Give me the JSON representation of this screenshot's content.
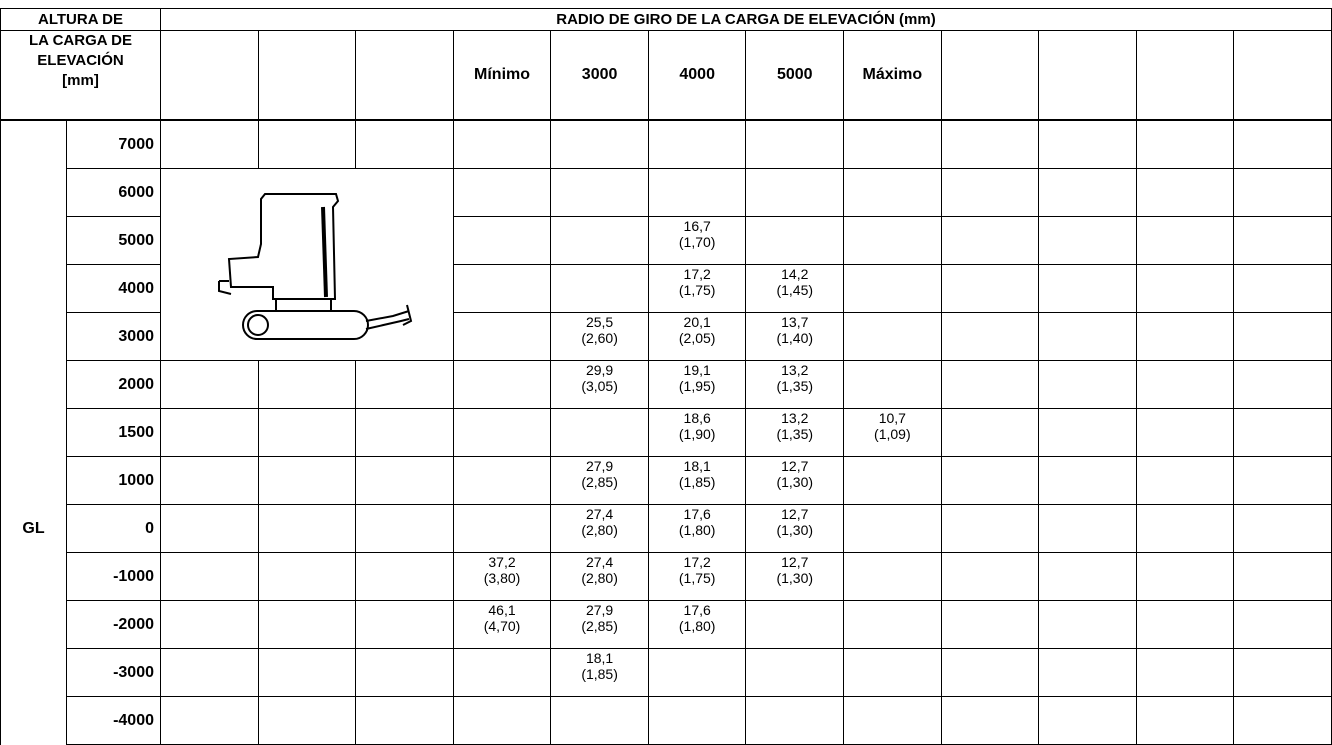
{
  "header": {
    "left_top": "ALTURA DE",
    "left_bottom": [
      "LA CARGA DE",
      "ELEVACIÓN",
      "[mm]"
    ],
    "title": "RADIO DE GIRO DE LA CARGA DE ELEVACIÓN (mm)",
    "columns": [
      null,
      null,
      null,
      "Mínimo",
      "3000",
      "4000",
      "5000",
      "Máximo",
      null,
      null,
      null,
      null
    ]
  },
  "rows": [
    {
      "height": "7000",
      "cells": [
        null,
        null,
        null,
        null,
        null,
        null,
        null,
        null,
        null,
        null,
        null,
        null
      ]
    },
    {
      "height": "6000",
      "cells": [
        null,
        null,
        null,
        null,
        null,
        null,
        null,
        null,
        null,
        null,
        null,
        null
      ]
    },
    {
      "height": "5000",
      "cells": [
        null,
        null,
        null,
        null,
        null,
        {
          "value": "16,7",
          "sub": "(1,70)"
        },
        null,
        null,
        null,
        null,
        null,
        null
      ]
    },
    {
      "height": "4000",
      "cells": [
        null,
        null,
        null,
        null,
        null,
        {
          "value": "17,2",
          "sub": "(1,75)"
        },
        {
          "value": "14,2",
          "sub": "(1,45)"
        },
        null,
        null,
        null,
        null,
        null
      ]
    },
    {
      "height": "3000",
      "cells": [
        null,
        null,
        null,
        null,
        {
          "value": "25,5",
          "sub": "(2,60)"
        },
        {
          "value": "20,1",
          "sub": "(2,05)"
        },
        {
          "value": "13,7",
          "sub": "(1,40)"
        },
        null,
        null,
        null,
        null,
        null
      ]
    },
    {
      "height": "2000",
      "cells": [
        null,
        null,
        null,
        null,
        {
          "value": "29,9",
          "sub": "(3,05)"
        },
        {
          "value": "19,1",
          "sub": "(1,95)"
        },
        {
          "value": "13,2",
          "sub": "(1,35)"
        },
        null,
        null,
        null,
        null,
        null
      ]
    },
    {
      "height": "1500",
      "cells": [
        null,
        null,
        null,
        null,
        null,
        {
          "value": "18,6",
          "sub": "(1,90)"
        },
        {
          "value": "13,2",
          "sub": "(1,35)"
        },
        {
          "value": "10,7",
          "sub": "(1,09)"
        },
        null,
        null,
        null,
        null
      ]
    },
    {
      "height": "1000",
      "cells": [
        null,
        null,
        null,
        null,
        {
          "value": "27,9",
          "sub": "(2,85)"
        },
        {
          "value": "18,1",
          "sub": "(1,85)"
        },
        {
          "value": "12,7",
          "sub": "(1,30)"
        },
        null,
        null,
        null,
        null,
        null
      ]
    },
    {
      "height": "0",
      "side": "GL",
      "cells": [
        null,
        null,
        null,
        null,
        {
          "value": "27,4",
          "sub": "(2,80)"
        },
        {
          "value": "17,6",
          "sub": "(1,80)"
        },
        {
          "value": "12,7",
          "sub": "(1,30)"
        },
        null,
        null,
        null,
        null,
        null
      ]
    },
    {
      "height": "-1000",
      "cells": [
        null,
        null,
        null,
        {
          "value": "37,2",
          "sub": "(3,80)"
        },
        {
          "value": "27,4",
          "sub": "(2,80)"
        },
        {
          "value": "17,2",
          "sub": "(1,75)"
        },
        {
          "value": "12,7",
          "sub": "(1,30)"
        },
        null,
        null,
        null,
        null,
        null
      ]
    },
    {
      "height": "-2000",
      "cells": [
        null,
        null,
        null,
        {
          "value": "46,1",
          "sub": "(4,70)"
        },
        {
          "value": "27,9",
          "sub": "(2,85)"
        },
        {
          "value": "17,6",
          "sub": "(1,80)"
        },
        null,
        null,
        null,
        null,
        null,
        null
      ]
    },
    {
      "height": "-3000",
      "cells": [
        null,
        null,
        null,
        null,
        {
          "value": "18,1",
          "sub": "(1,85)"
        },
        null,
        null,
        null,
        null,
        null,
        null,
        null
      ]
    },
    {
      "height": "-4000",
      "cells": [
        null,
        null,
        null,
        null,
        null,
        null,
        null,
        null,
        null,
        null,
        null,
        null
      ]
    }
  ]
}
